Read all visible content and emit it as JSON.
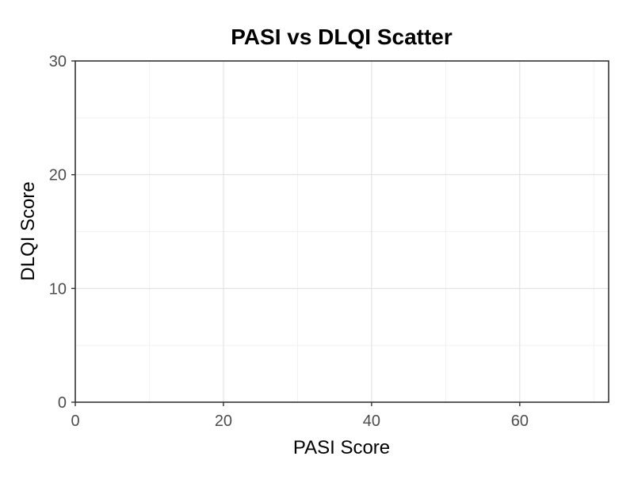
{
  "chart_data": {
    "type": "scatter",
    "title": "PASI vs DLQI Scatter",
    "xlabel": "PASI Score",
    "ylabel": "DLQI Score",
    "xlim": [
      0,
      72
    ],
    "ylim": [
      0,
      30
    ],
    "x_ticks": [
      0,
      20,
      40,
      60
    ],
    "y_ticks": [
      0,
      10,
      20,
      30
    ],
    "x_minor_ticks": [
      10,
      30,
      50,
      70
    ],
    "y_minor_ticks": [
      5,
      15,
      25
    ],
    "grid": true,
    "points": [],
    "colors": {
      "grid_major": "#dedede",
      "grid_minor": "#efefef",
      "border": "#333333",
      "tick_text": "#4d4d4d",
      "text": "#000000"
    }
  }
}
